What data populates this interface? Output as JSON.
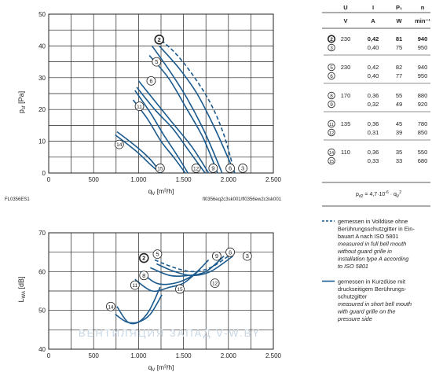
{
  "colors": {
    "curve": "#1b5a8e",
    "grid": "#222222"
  },
  "chart_data": [
    {
      "type": "line",
      "xlabel": "q_V [m³/h]",
      "ylabel": "p_sf [Pa]",
      "xlim": [
        0,
        2500
      ],
      "ylim": [
        0,
        50
      ],
      "xticks": [
        "0",
        "500",
        "1.000",
        "1.500",
        "2.000",
        "2.500"
      ],
      "yticks": [
        "0",
        "10",
        "20",
        "30",
        "40",
        "50"
      ],
      "grid": true,
      "footer_left": "FL0356ES1",
      "footer_right": "fl0356eq2c3sk001/fl0356ew2c3sk001",
      "series": [
        {
          "name": "2",
          "style": "dashed",
          "x": [
            1200,
            1400,
            1600,
            1800,
            1950,
            2070
          ],
          "y": [
            43,
            38,
            31,
            22,
            12,
            0
          ]
        },
        {
          "name": "3",
          "style": "solid",
          "x": [
            1230,
            1450,
            1650,
            1850,
            2070
          ],
          "y": [
            40,
            33,
            25,
            14,
            0
          ]
        },
        {
          "name": "5",
          "style": "solid",
          "x": [
            1150,
            1350,
            1550,
            1750,
            1930
          ],
          "y": [
            40,
            32,
            23,
            12,
            0
          ]
        },
        {
          "name": "6",
          "style": "solid",
          "x": [
            1120,
            1330,
            1520,
            1720,
            1880
          ],
          "y": [
            37,
            30,
            21,
            11,
            0
          ]
        },
        {
          "name": "8",
          "style": "solid",
          "x": [
            1000,
            1200,
            1400,
            1600,
            1780
          ],
          "y": [
            29,
            22,
            15,
            8,
            0
          ]
        },
        {
          "name": "9",
          "style": "solid",
          "x": [
            980,
            1180,
            1380,
            1560,
            1740
          ],
          "y": [
            27,
            20,
            14,
            7,
            0
          ]
        },
        {
          "name": "11",
          "style": "solid",
          "x": [
            960,
            1130,
            1280,
            1420,
            1550
          ],
          "y": [
            26,
            19,
            12,
            6,
            0
          ]
        },
        {
          "name": "12",
          "style": "solid",
          "x": [
            940,
            1100,
            1250,
            1390,
            1520
          ],
          "y": [
            23,
            17,
            10,
            5,
            0
          ]
        },
        {
          "name": "14",
          "style": "solid",
          "x": [
            760,
            900,
            1030,
            1140,
            1250
          ],
          "y": [
            13,
            10,
            7,
            4,
            0
          ]
        },
        {
          "name": "15",
          "style": "solid",
          "x": [
            740,
            880,
            1010,
            1120,
            1240
          ],
          "y": [
            12,
            9,
            6,
            3,
            0
          ]
        }
      ],
      "curve_labels": [
        {
          "id": "2",
          "x": 1230,
          "y": 42
        },
        {
          "id": "5",
          "x": 1200,
          "y": 35
        },
        {
          "id": "6",
          "x": 1140,
          "y": 29
        },
        {
          "id": "11",
          "x": 1010,
          "y": 21
        },
        {
          "id": "14",
          "x": 785,
          "y": 9
        },
        {
          "id": "15",
          "x": 1240,
          "y": 1.5
        },
        {
          "id": "12",
          "x": 1640,
          "y": 1.5
        },
        {
          "id": "9",
          "x": 1830,
          "y": 1.5
        },
        {
          "id": "6",
          "x": 2020,
          "y": 1.5
        },
        {
          "id": "3",
          "x": 2160,
          "y": 1.5
        }
      ]
    },
    {
      "type": "line",
      "xlabel": "q_V [m³/h]",
      "ylabel": "L_WA [dB]",
      "xlim": [
        0,
        2500
      ],
      "ylim": [
        40,
        70
      ],
      "xticks": [
        "0",
        "500",
        "1.000",
        "1.500",
        "2.000",
        "2.500"
      ],
      "yticks": [
        "40",
        "50",
        "60",
        "70"
      ],
      "grid": true,
      "watermark": "ВЕНТИЛЯЦИЯ ЗАПАД  V-W.BY",
      "series": [
        {
          "name": "2",
          "style": "dashed",
          "x": [
            1180,
            1400,
            1600,
            1800,
            2000
          ],
          "y": [
            63,
            61,
            60,
            61,
            64
          ]
        },
        {
          "name": "3",
          "style": "solid",
          "x": [
            1200,
            1400,
            1600,
            1800,
            2050
          ],
          "y": [
            62,
            60,
            59,
            60,
            64
          ]
        },
        {
          "name": "5",
          "style": "solid",
          "x": [
            1130,
            1350,
            1550,
            1750,
            1950
          ],
          "y": [
            61,
            59,
            59,
            60,
            64
          ]
        },
        {
          "name": "8",
          "style": "solid",
          "x": [
            1020,
            1200,
            1400,
            1600,
            1780
          ],
          "y": [
            60,
            57,
            57,
            59,
            63
          ]
        },
        {
          "name": "11",
          "style": "solid",
          "x": [
            960,
            1150,
            1350,
            1500,
            1660
          ],
          "y": [
            58,
            55,
            56,
            57,
            60
          ]
        },
        {
          "name": "14",
          "style": "solid",
          "x": [
            760,
            880,
            1000,
            1120,
            1240
          ],
          "y": [
            51,
            47,
            47,
            50,
            56
          ]
        },
        {
          "name": "15",
          "style": "solid",
          "x": [
            740,
            870,
            1000,
            1130,
            1260
          ],
          "y": [
            49,
            47,
            47,
            49,
            54
          ]
        }
      ],
      "curve_labels": [
        {
          "id": "2",
          "x": 1060,
          "y": 63.5
        },
        {
          "id": "5",
          "x": 1210,
          "y": 64.5
        },
        {
          "id": "8",
          "x": 1060,
          "y": 59
        },
        {
          "id": "11",
          "x": 960,
          "y": 56.5
        },
        {
          "id": "14",
          "x": 690,
          "y": 51
        },
        {
          "id": "15",
          "x": 1460,
          "y": 55.5
        },
        {
          "id": "12",
          "x": 1850,
          "y": 57
        },
        {
          "id": "9",
          "x": 1870,
          "y": 64
        },
        {
          "id": "6",
          "x": 2020,
          "y": 65
        },
        {
          "id": "3",
          "x": 2210,
          "y": 64
        }
      ]
    }
  ],
  "table": {
    "headers": [
      "U",
      "I",
      "P₁",
      "n"
    ],
    "units": [
      "V",
      "A",
      "W",
      "min⁻¹"
    ],
    "groups": [
      {
        "rows": [
          {
            "id": "2",
            "bold": true,
            "u": "230",
            "i": "0,42",
            "p": "81",
            "n": "940"
          },
          {
            "id": "3",
            "bold": false,
            "u": "",
            "i": "0,40",
            "p": "75",
            "n": "950"
          }
        ]
      },
      {
        "rows": [
          {
            "id": "5",
            "bold": false,
            "u": "230",
            "i": "0,42",
            "p": "82",
            "n": "940"
          },
          {
            "id": "6",
            "bold": false,
            "u": "",
            "i": "0,40",
            "p": "77",
            "n": "950"
          }
        ]
      },
      {
        "rows": [
          {
            "id": "8",
            "bold": false,
            "u": "170",
            "i": "0,36",
            "p": "55",
            "n": "880"
          },
          {
            "id": "9",
            "bold": false,
            "u": "",
            "i": "0,32",
            "p": "49",
            "n": "920"
          }
        ]
      },
      {
        "rows": [
          {
            "id": "11",
            "bold": false,
            "u": "135",
            "i": "0,36",
            "p": "45",
            "n": "780"
          },
          {
            "id": "12",
            "bold": false,
            "u": "",
            "i": "0,31",
            "p": "39",
            "n": "850"
          }
        ]
      },
      {
        "rows": [
          {
            "id": "14",
            "bold": false,
            "u": "110",
            "i": "0,36",
            "p": "35",
            "n": "550"
          },
          {
            "id": "15",
            "bold": false,
            "u": "",
            "i": "0,33",
            "p": "33",
            "n": "680"
          }
        ]
      }
    ],
    "formula": "p_d2 = 4,7·10⁻⁶ · q_V²"
  },
  "legend": [
    {
      "style": "dashed",
      "lines": [
        "gemessen in Volldüse ohne",
        "Berührungsschutzgitter in Ein-",
        "bauart A nach ISO 5801"
      ],
      "italic_lines": [
        "measured in full bell mouth",
        "without guard grille in",
        "installation type A according",
        "to ISO 5801"
      ]
    },
    {
      "style": "solid",
      "lines": [
        "gemessen in Kurzdüse mit",
        "druckseitigem Berührungs-",
        "schutzgitter"
      ],
      "italic_lines": [
        "measured in short bell mouth",
        "with guard grille on the",
        "pressure side"
      ]
    }
  ]
}
